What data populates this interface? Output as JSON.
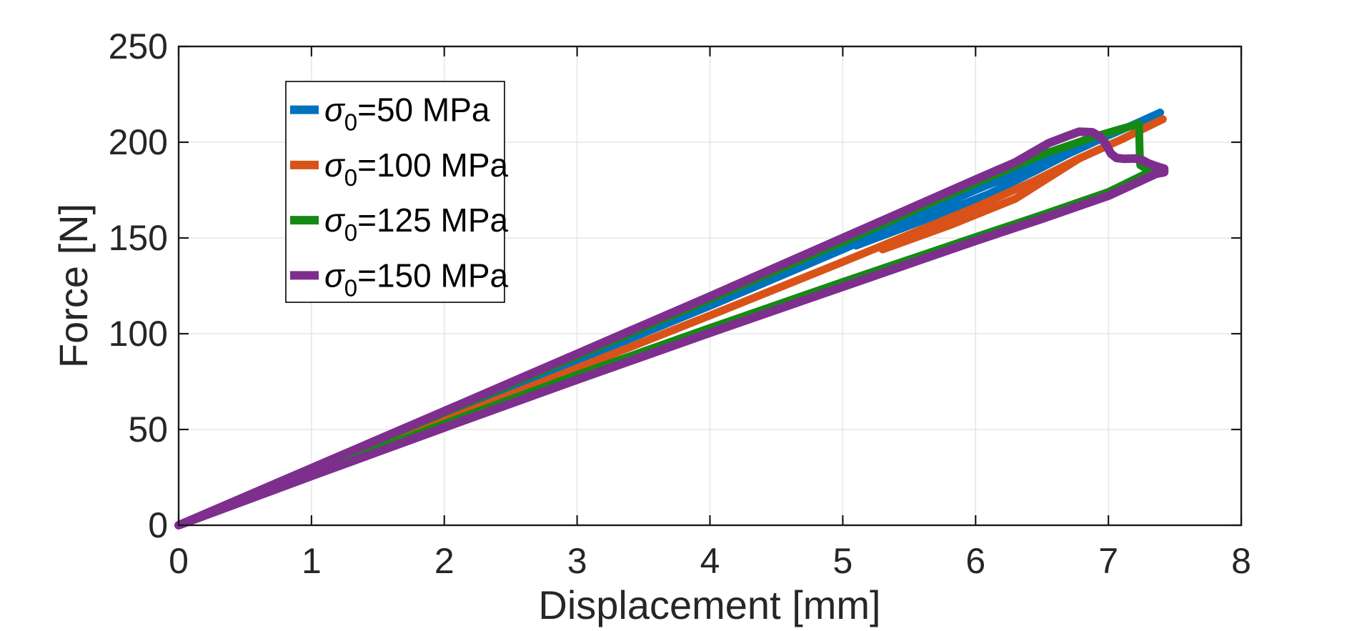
{
  "chart_data": {
    "type": "line",
    "title": "",
    "xlabel": "Displacement [mm]",
    "ylabel": "Force [N]",
    "xlim": [
      0,
      8
    ],
    "ylim": [
      0,
      250
    ],
    "xticks": [
      0,
      1,
      2,
      3,
      4,
      5,
      6,
      7,
      8
    ],
    "yticks": [
      0,
      50,
      100,
      150,
      200,
      250
    ],
    "grid": true,
    "legend_position": "upper-left",
    "series": [
      {
        "name": "sigma0=50 MPa",
        "legend_symbol": "σ",
        "legend_subscript": "0",
        "legend_rest": "=50 MPa",
        "color": "#0072BD",
        "line_width": 11,
        "paths": [
          [
            [
              0,
              0
            ],
            [
              1,
              28.5
            ],
            [
              2,
              57
            ],
            [
              3,
              86
            ],
            [
              4,
              114.5
            ],
            [
              5,
              144
            ],
            [
              5.5,
              159.5
            ],
            [
              6,
              175
            ],
            [
              6.45,
              188
            ],
            [
              6.7,
              194
            ],
            [
              7.0,
              203.5
            ],
            [
              7.2,
              209.5
            ],
            [
              7.39,
              215.5
            ]
          ],
          [
            [
              5.1,
              146
            ],
            [
              5.6,
              159
            ],
            [
              6.1,
              173
            ],
            [
              6.45,
              185
            ],
            [
              6.7,
              194
            ]
          ]
        ]
      },
      {
        "name": "sigma0=100 MPa",
        "legend_symbol": "σ",
        "legend_subscript": "0",
        "legend_rest": "=100 MPa",
        "color": "#D95319",
        "line_width": 11,
        "paths": [
          [
            [
              0,
              0
            ],
            [
              1,
              27.3
            ],
            [
              2,
              54.5
            ],
            [
              3,
              82
            ],
            [
              4,
              109.5
            ],
            [
              5,
              137.5
            ],
            [
              6,
              166
            ],
            [
              6.45,
              180
            ],
            [
              6.78,
              191.5
            ],
            [
              7.1,
              201.5
            ],
            [
              7.41,
              212
            ]
          ],
          [
            [
              5.3,
              144
            ],
            [
              5.8,
              156.5
            ],
            [
              6.3,
              170.5
            ],
            [
              6.78,
              191.5
            ]
          ]
        ]
      },
      {
        "name": "sigma0=125 MPa",
        "legend_symbol": "σ",
        "legend_subscript": "0",
        "legend_rest": "=125 MPa",
        "color": "#148A14",
        "line_width": 11,
        "paths": [
          [
            [
              0,
              0
            ],
            [
              1,
              29.4
            ],
            [
              2,
              58.8
            ],
            [
              3,
              88.3
            ],
            [
              4,
              118
            ],
            [
              5,
              148
            ],
            [
              6,
              178.5
            ],
            [
              6.5,
              193.5
            ],
            [
              6.9,
              203
            ],
            [
              7.1,
              207
            ],
            [
              7.2,
              209
            ],
            [
              7.23,
              209.5
            ],
            [
              7.235,
              196
            ],
            [
              7.24,
              188
            ],
            [
              7.28,
              186.3
            ],
            [
              7.33,
              185.2
            ],
            [
              7.0,
              174
            ],
            [
              6.5,
              162
            ],
            [
              6,
              150.5
            ],
            [
              5,
              127
            ],
            [
              4,
              103
            ],
            [
              3,
              78.5
            ],
            [
              2,
              53
            ],
            [
              1,
              26.8
            ],
            [
              0,
              0
            ]
          ]
        ]
      },
      {
        "name": "sigma0=150 MPa",
        "legend_symbol": "σ",
        "legend_subscript": "0",
        "legend_rest": "=150 MPa",
        "color": "#7E2F8E",
        "line_width": 12,
        "paths": [
          [
            [
              0,
              0
            ],
            [
              1,
              29.8
            ],
            [
              2,
              59.6
            ],
            [
              3,
              89.5
            ],
            [
              4,
              119.5
            ],
            [
              5,
              150
            ],
            [
              6,
              180.5
            ],
            [
              6.3,
              189.5
            ],
            [
              6.55,
              199.5
            ],
            [
              6.7,
              203.5
            ],
            [
              6.78,
              205.5
            ],
            [
              6.88,
              205.2
            ],
            [
              6.94,
              202.8
            ],
            [
              6.98,
              199
            ],
            [
              7.02,
              194
            ],
            [
              7.06,
              191.8
            ],
            [
              7.12,
              191.3
            ],
            [
              7.2,
              191.5
            ],
            [
              7.26,
              190.5
            ],
            [
              7.3,
              189
            ],
            [
              7.34,
              188
            ],
            [
              7.38,
              187
            ],
            [
              7.42,
              186.2
            ],
            [
              7.42,
              184.3
            ],
            [
              7.36,
              183.5
            ],
            [
              7.0,
              172
            ],
            [
              6.5,
              160
            ],
            [
              6,
              148.5
            ],
            [
              5,
              124.5
            ],
            [
              4,
              100.5
            ],
            [
              3,
              76
            ],
            [
              2,
              51
            ],
            [
              1,
              25.7
            ],
            [
              0,
              0
            ]
          ]
        ]
      }
    ]
  },
  "style": {
    "axis_color": "#1a1a1a",
    "tick_label_color": "#262626",
    "grid_color": "#E6E6E6",
    "legend_border_color": "#000000",
    "legend_background": "#ffffff"
  }
}
